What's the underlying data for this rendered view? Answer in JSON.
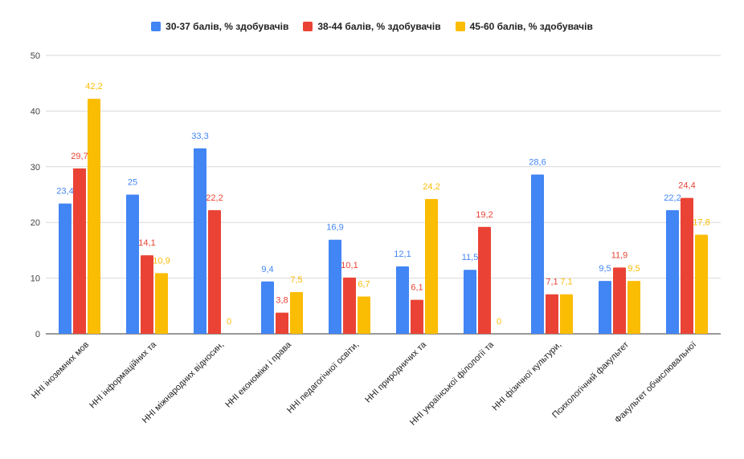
{
  "chart_data": {
    "type": "bar",
    "title": "",
    "xlabel": "",
    "ylabel": "",
    "ylim": [
      0,
      50
    ],
    "yticks": [
      0,
      10,
      20,
      30,
      40,
      50
    ],
    "legend_position": "top-center",
    "categories": [
      "ННІ іноземних мов",
      "ННІ інформаційних та",
      "ННІ міжнародних відносин,",
      "ННІ економіки і права",
      "ННІ педагогічної освіти,",
      "ННІ природничих та",
      "ННІ української філології та",
      "ННІ фізичної культури,",
      "Психологічний факультет",
      "Факультет обчислювальної"
    ],
    "series": [
      {
        "name": "30-37 балів, % здобувачів",
        "color": "#4285F4",
        "values": [
          23.4,
          25,
          33.3,
          9.4,
          16.9,
          12.1,
          11.5,
          28.6,
          9.5,
          22.2
        ],
        "labels": [
          "23,4",
          "25",
          "33,3",
          "9,4",
          "16,9",
          "12,1",
          "11,5",
          "28,6",
          "9,5",
          "22,2"
        ]
      },
      {
        "name": "38-44 балів, % здобувачів",
        "color": "#EA4335",
        "values": [
          29.7,
          14.1,
          22.2,
          3.8,
          10.1,
          6.1,
          19.2,
          7.1,
          11.9,
          24.4
        ],
        "labels": [
          "29,7",
          "14,1",
          "22,2",
          "3,8",
          "10,1",
          "6,1",
          "19,2",
          "7,1",
          "11,9",
          "24,4"
        ]
      },
      {
        "name": "45-60 балів, % здобувачів",
        "color": "#FBBC04",
        "values": [
          42.2,
          10.9,
          0,
          7.5,
          6.7,
          24.2,
          0,
          7.1,
          9.5,
          17.8
        ],
        "labels": [
          "42,2",
          "10,9",
          "0",
          "7,5",
          "6,7",
          "24,2",
          "0",
          "7,1",
          "9,5",
          "17,8"
        ]
      }
    ]
  }
}
